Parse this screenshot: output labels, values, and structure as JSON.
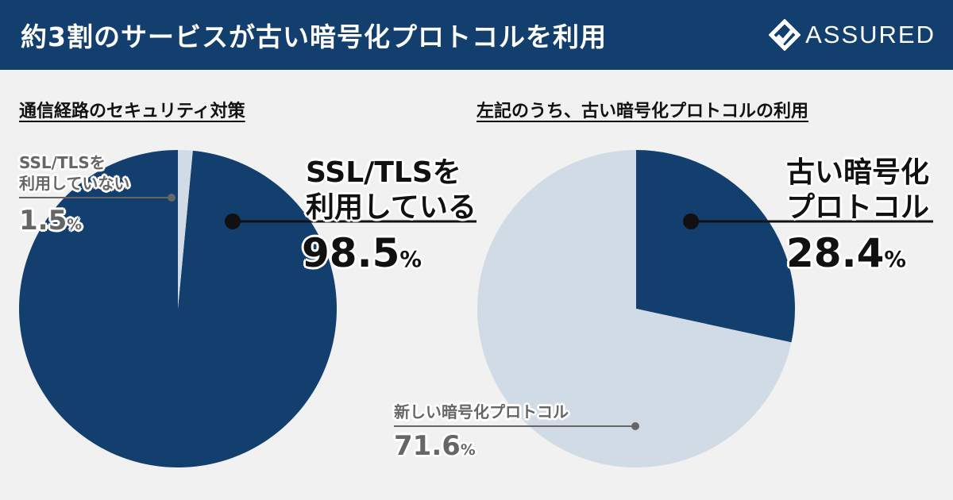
{
  "header": {
    "title": "約3割のサービスが古い暗号化プロトコルを利用",
    "brand": "ASSURED"
  },
  "colors": {
    "header_bg": "#123f6d",
    "primary": "#123f6d",
    "secondary": "#d0dbe5",
    "label_gray": "#666666"
  },
  "chart_data": [
    {
      "type": "pie",
      "title": "通信経路のセキュリティ対策",
      "slices": [
        {
          "label_lines": [
            "SSL/TLSを",
            "利用している"
          ],
          "value": 98.5,
          "value_text": "98.5",
          "unit": "%",
          "color": "#123f6d"
        },
        {
          "label_lines": [
            "SSL/TLSを",
            "利用していない"
          ],
          "value": 1.5,
          "value_text": "1.5",
          "unit": "%",
          "color": "#d0dbe5"
        }
      ]
    },
    {
      "type": "pie",
      "title": "左記のうち、古い暗号化プロトコルの利用",
      "slices": [
        {
          "label_lines": [
            "古い暗号化",
            "プロトコル"
          ],
          "value": 28.4,
          "value_text": "28.4",
          "unit": "%",
          "color": "#123f6d"
        },
        {
          "label_lines": [
            "新しい暗号化プロトコル"
          ],
          "value": 71.6,
          "value_text": "71.6",
          "unit": "%",
          "color": "#d0dbe5"
        }
      ]
    }
  ]
}
